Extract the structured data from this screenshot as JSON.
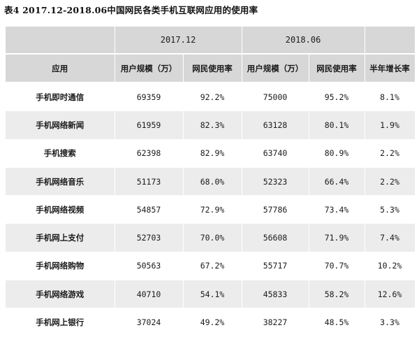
{
  "caption": "表4 2017.12-2018.06中国网民各类手机互联网应用的使用率",
  "groups": {
    "g1": "2017.12",
    "g2": "2018.06"
  },
  "columns": {
    "app": "应用",
    "users1": "用户规模（万）",
    "rate1": "网民使用率",
    "users2": "用户规模（万）",
    "rate2": "网民使用率",
    "growth": "半年增长率"
  },
  "rows": [
    {
      "app": "手机即时通信",
      "users1": "69359",
      "rate1": "92.2%",
      "users2": "75000",
      "rate2": "95.2%",
      "growth": "8.1%"
    },
    {
      "app": "手机网络新闻",
      "users1": "61959",
      "rate1": "82.3%",
      "users2": "63128",
      "rate2": "80.1%",
      "growth": "1.9%"
    },
    {
      "app": "手机搜索",
      "users1": "62398",
      "rate1": "82.9%",
      "users2": "63740",
      "rate2": "80.9%",
      "growth": "2.2%"
    },
    {
      "app": "手机网络音乐",
      "users1": "51173",
      "rate1": "68.0%",
      "users2": "52323",
      "rate2": "66.4%",
      "growth": "2.2%"
    },
    {
      "app": "手机网络视频",
      "users1": "54857",
      "rate1": "72.9%",
      "users2": "57786",
      "rate2": "73.4%",
      "growth": "5.3%"
    },
    {
      "app": "手机网上支付",
      "users1": "52703",
      "rate1": "70.0%",
      "users2": "56608",
      "rate2": "71.9%",
      "growth": "7.4%"
    },
    {
      "app": "手机网络购物",
      "users1": "50563",
      "rate1": "67.2%",
      "users2": "55717",
      "rate2": "70.7%",
      "growth": "10.2%"
    },
    {
      "app": "手机网络游戏",
      "users1": "40710",
      "rate1": "54.1%",
      "users2": "45833",
      "rate2": "58.2%",
      "growth": "12.6%"
    },
    {
      "app": "手机网上银行",
      "users1": "37024",
      "rate1": "49.2%",
      "users2": "38227",
      "rate2": "48.5%",
      "growth": "3.3%"
    }
  ]
}
